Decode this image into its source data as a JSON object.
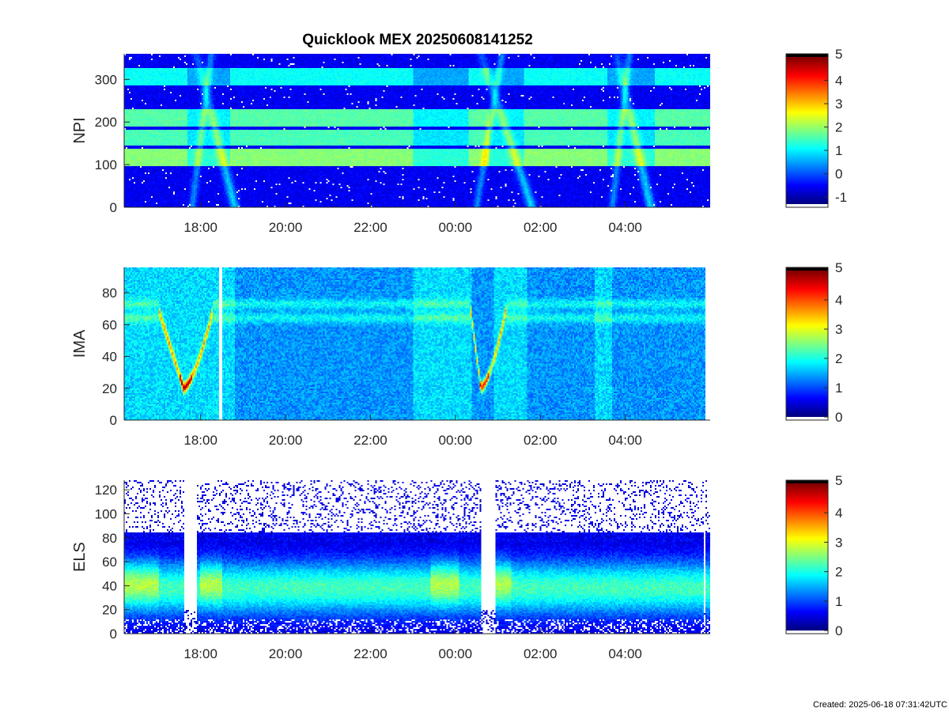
{
  "footer": {
    "created": "Created: 2025-06-18 07:31:42UTC"
  },
  "colors": {
    "colormap": "jet",
    "axis": "#262626",
    "background": "#ffffff",
    "no_data": "#ffffff"
  },
  "chart_data": [
    {
      "type": "heatmap",
      "title": "Quicklook MEX 20250608141252",
      "ylabel": "NPI",
      "ylim": [
        0,
        360
      ],
      "yticks": [
        0,
        100,
        200,
        300
      ],
      "x_ticks": [
        "18:00",
        "20:00",
        "22:00",
        "00:00",
        "02:00",
        "04:00"
      ],
      "x_tick_hours": [
        18,
        20,
        22,
        24,
        26,
        28
      ],
      "x_range_hours": [
        16.2,
        30.0
      ],
      "clim": [
        -1.3,
        5
      ],
      "colorbar_ticks": [
        -1,
        0,
        1,
        2,
        3,
        4,
        5
      ],
      "features": {
        "bright_bands": [
          [
            96,
            136,
            1.9
          ],
          [
            146,
            180,
            1.5
          ],
          [
            190,
            230,
            1.6
          ],
          [
            284,
            326,
            1.1
          ]
        ],
        "background_level": -0.6,
        "dips_hours": [
          [
            17.7,
            18.7
          ],
          [
            23.0,
            24.3
          ],
          [
            24.8,
            25.6
          ],
          [
            27.6,
            28.7
          ]
        ],
        "arcs": [
          {
            "center_hour": 18.3,
            "top_hour": 17.9,
            "bottom_hour": 18.8
          },
          {
            "center_hour": 25.3,
            "top_hour": 24.6,
            "bottom_hour": 25.8
          },
          {
            "center_hour": 28.1,
            "top_hour": 27.8,
            "bottom_hour": 28.6
          }
        ]
      }
    },
    {
      "type": "heatmap",
      "title": "",
      "ylabel": "IMA",
      "ylim": [
        0,
        96
      ],
      "yticks": [
        0,
        20,
        40,
        60,
        80
      ],
      "x_ticks": [
        "18:00",
        "20:00",
        "22:00",
        "00:00",
        "02:00",
        "04:00"
      ],
      "x_tick_hours": [
        18,
        20,
        22,
        24,
        26,
        28
      ],
      "x_range_hours": [
        16.2,
        30.0
      ],
      "data_x_range_hours": [
        16.2,
        29.9
      ],
      "clim": [
        0,
        5
      ],
      "colorbar_ticks": [
        0,
        1,
        2,
        3,
        4,
        5
      ],
      "features": {
        "gap_hours": [
          18.45,
          18.52
        ],
        "ion_lines": [
          [
            64,
            1.9
          ],
          [
            73,
            1.9
          ]
        ],
        "background_level": 1.35,
        "brighter_intervals_hours": [
          [
            16.2,
            18.8
          ],
          [
            23.0,
            24.4
          ],
          [
            24.9,
            25.7
          ],
          [
            27.3,
            27.7
          ]
        ],
        "periapsis_dips": [
          {
            "start_hour": 17.0,
            "min_hour": 17.6,
            "end_hour": 18.3,
            "min_energy": 20
          },
          {
            "start_hour": 24.35,
            "min_hour": 24.6,
            "end_hour": 25.2,
            "min_energy": 20
          }
        ]
      }
    },
    {
      "type": "heatmap",
      "title": "",
      "ylabel": "ELS",
      "ylim": [
        0,
        128
      ],
      "yticks": [
        0,
        20,
        40,
        60,
        80,
        100,
        120
      ],
      "x_ticks": [
        "18:00",
        "20:00",
        "22:00",
        "00:00",
        "02:00",
        "04:00"
      ],
      "x_tick_hours": [
        18,
        20,
        22,
        24,
        26,
        28
      ],
      "x_range_hours": [
        16.2,
        30.0
      ],
      "clim": [
        0,
        5
      ],
      "colorbar_ticks": [
        0,
        1,
        2,
        3,
        4,
        5
      ],
      "features": {
        "core_center_energy": 38,
        "core_level": 2.0,
        "upper_edge_energy": 82,
        "noise_above_energy": 85,
        "bright_intervals_hours": [
          [
            16.2,
            17.0
          ],
          [
            18.0,
            18.5
          ],
          [
            23.4,
            24.1
          ],
          [
            24.9,
            25.3
          ]
        ],
        "dropouts_hours": [
          [
            17.6,
            17.9
          ],
          [
            24.6,
            24.95
          ],
          [
            29.85,
            29.9
          ]
        ]
      }
    }
  ]
}
